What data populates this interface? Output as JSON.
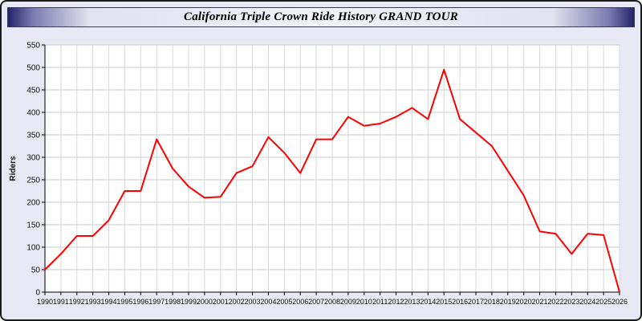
{
  "title_bar": {
    "title": "California Triple Crown Ride History GRAND TOUR"
  },
  "chart_data": {
    "type": "line",
    "title": "California Triple Crown Ride History GRAND TOUR",
    "xlabel": "",
    "ylabel": "Riders",
    "ylim": [
      0,
      550
    ],
    "ytick_step": 50,
    "grid": true,
    "legend": "none",
    "line_color": "#ff0000",
    "plot_background": "#ffffff",
    "page_background": "#e9e9f5",
    "x": [
      1990,
      1991,
      1992,
      1993,
      1994,
      1995,
      1996,
      1997,
      1998,
      1999,
      2000,
      2001,
      2002,
      2003,
      2004,
      2005,
      2006,
      2007,
      2008,
      2009,
      2010,
      2011,
      2012,
      2013,
      2014,
      2015,
      2016,
      2017,
      2018,
      2019,
      2020,
      2021,
      2022,
      2023,
      2024,
      2025,
      2026
    ],
    "values": [
      50,
      85,
      125,
      125,
      160,
      225,
      225,
      340,
      275,
      235,
      210,
      212,
      265,
      280,
      345,
      310,
      265,
      340,
      340,
      390,
      370,
      375,
      390,
      410,
      385,
      495,
      385,
      355,
      325,
      270,
      215,
      135,
      130,
      85,
      130,
      127,
      0
    ]
  }
}
